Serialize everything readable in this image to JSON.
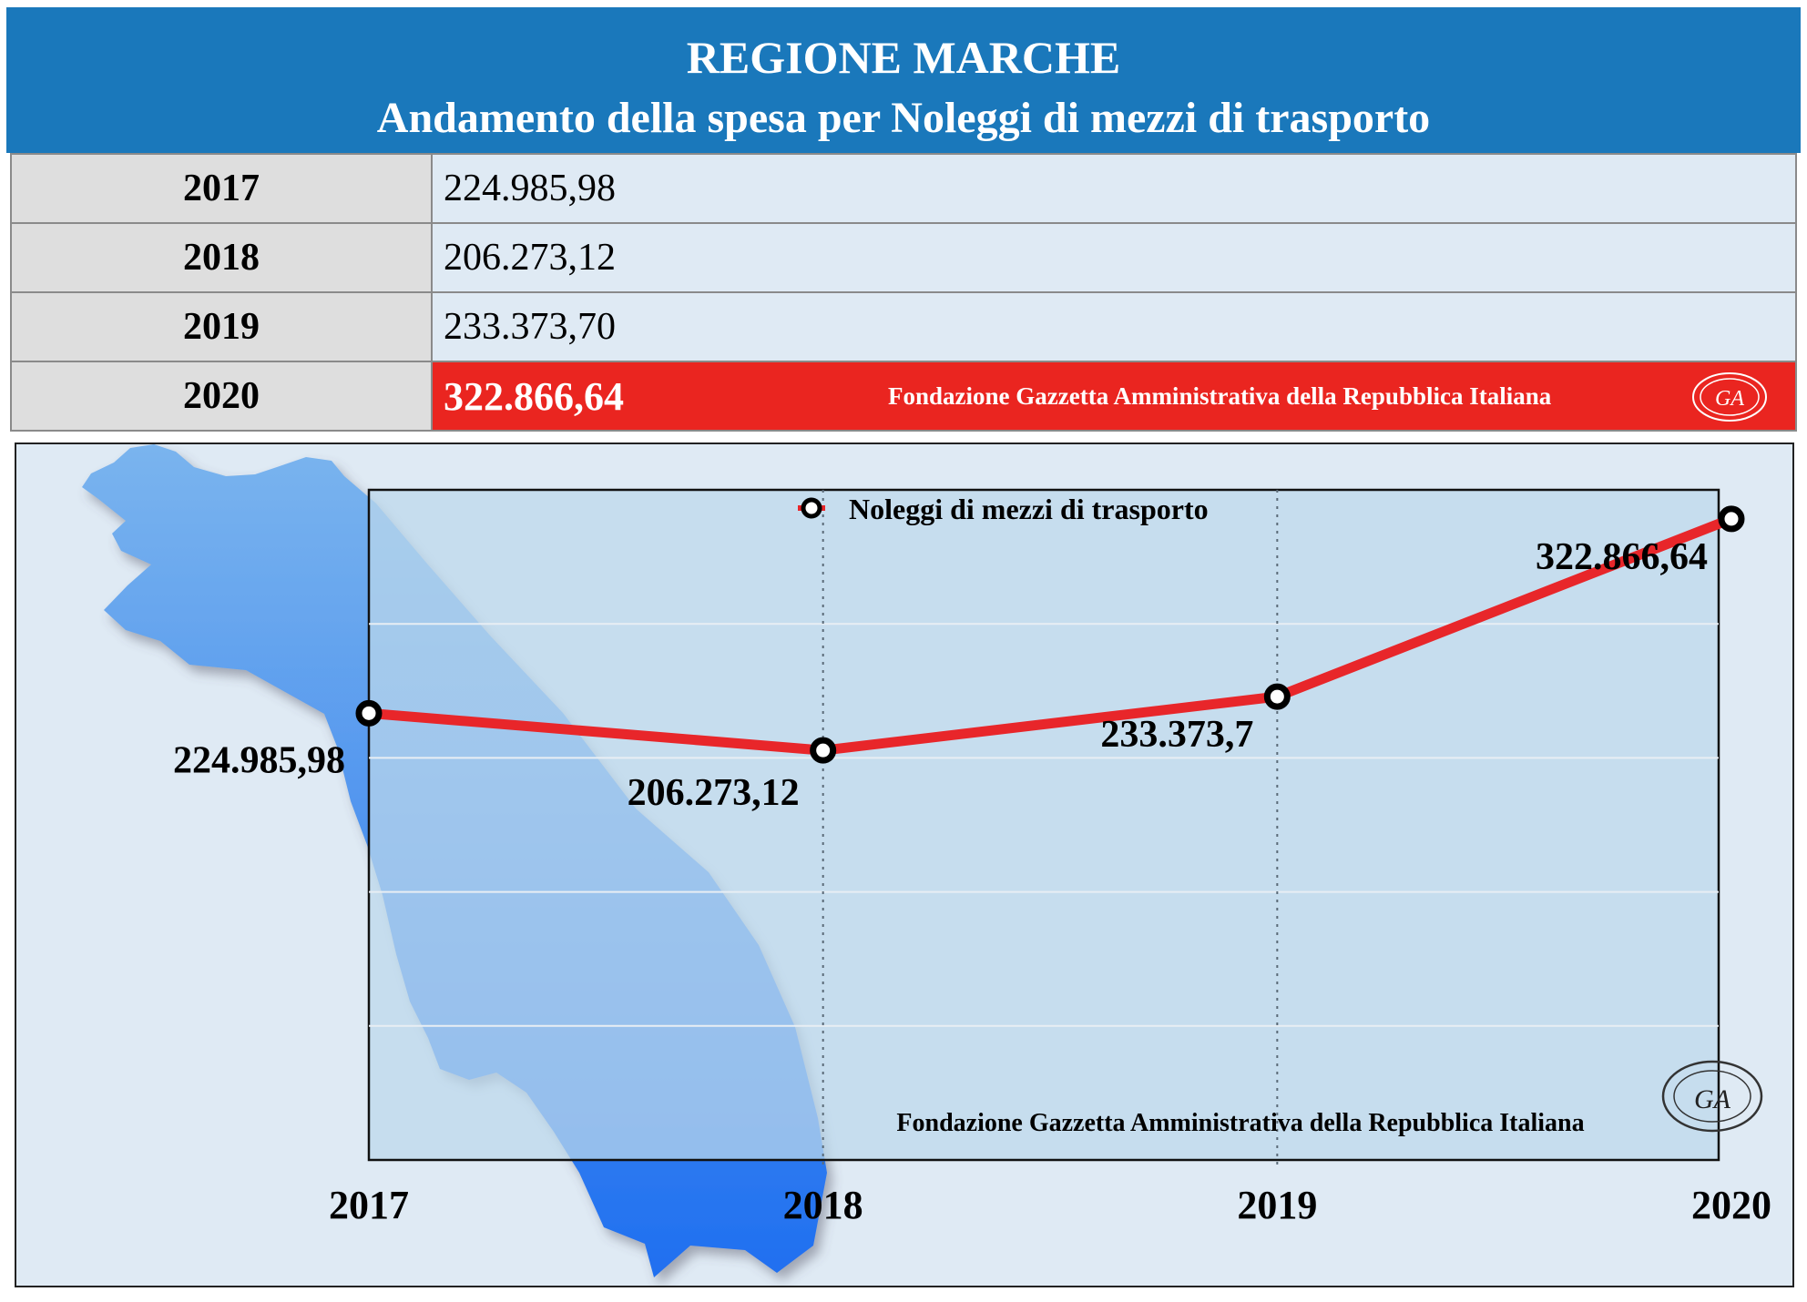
{
  "header": {
    "line1": "REGIONE MARCHE",
    "line2": "Andamento della spesa per Noleggi di mezzi di trasporto"
  },
  "table": {
    "rows": [
      {
        "year": "2017",
        "value": "224.985,98"
      },
      {
        "year": "2018",
        "value": "206.273,12"
      },
      {
        "year": "2019",
        "value": "233.373,70"
      },
      {
        "year": "2020",
        "value": "322.866,64"
      }
    ],
    "highlight_row_note": "Fondazione Gazzetta Amministrativa della Repubblica Italiana"
  },
  "seal": {
    "initials": "GA"
  },
  "colors": {
    "header_bg": "#1a78bb",
    "highlight_bg": "#ea2520",
    "line": "#e8262a",
    "map_top": "#7ab4ee",
    "map_bottom": "#1f6ff0"
  },
  "chart_data": {
    "type": "line",
    "categories": [
      "2017",
      "2018",
      "2019",
      "2020"
    ],
    "series": [
      {
        "name": "Noleggi di mezzi di trasporto",
        "values": [
          224985.98,
          206273.12,
          233373.7,
          322866.64
        ],
        "labels": [
          "224.985,98",
          "206.273,12",
          "233.373,7",
          "322.866,64"
        ]
      }
    ],
    "legend": "top-center",
    "grid": true,
    "footer": "Fondazione Gazzetta Amministrativa della Repubblica Italiana"
  }
}
